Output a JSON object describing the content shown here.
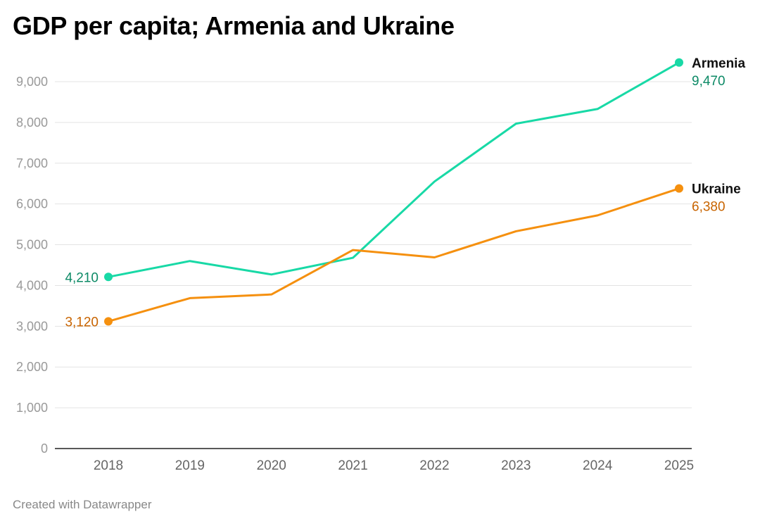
{
  "chart_data": {
    "type": "line",
    "title": "GDP per capita; Armenia and Ukraine",
    "xlabel": "",
    "ylabel": "",
    "categories": [
      "2018",
      "2019",
      "2020",
      "2021",
      "2022",
      "2023",
      "2024",
      "2025"
    ],
    "ylim": [
      0,
      9000
    ],
    "yticks": [
      0,
      1000,
      2000,
      3000,
      4000,
      5000,
      6000,
      7000,
      8000,
      9000
    ],
    "ytick_labels": [
      "0",
      "1,000",
      "2,000",
      "3,000",
      "4,000",
      "5,000",
      "6,000",
      "7,000",
      "8,000",
      "9,000"
    ],
    "grid": true,
    "series": [
      {
        "name": "Armenia",
        "color": "#18d9a6",
        "label_color": "#0d8a66",
        "values": [
          4210,
          4600,
          4270,
          4680,
          6550,
          7970,
          8330,
          9470
        ],
        "start_label": "4,210",
        "end_label": "9,470"
      },
      {
        "name": "Ukraine",
        "color": "#f5900f",
        "label_color": "#c86400",
        "values": [
          3120,
          3690,
          3780,
          4870,
          4690,
          5330,
          5720,
          6380
        ],
        "start_label": "3,120",
        "end_label": "6,380"
      }
    ]
  },
  "footer": "Created with Datawrapper"
}
